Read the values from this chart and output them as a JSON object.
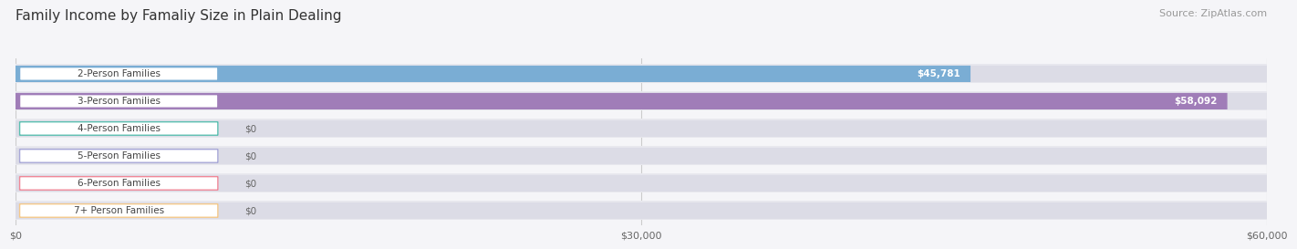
{
  "title": "Family Income by Famaliy Size in Plain Dealing",
  "source": "Source: ZipAtlas.com",
  "categories": [
    "2-Person Families",
    "3-Person Families",
    "4-Person Families",
    "5-Person Families",
    "6-Person Families",
    "7+ Person Families"
  ],
  "values": [
    45781,
    58092,
    0,
    0,
    0,
    0
  ],
  "bar_colors": [
    "#7aadd4",
    "#a07db8",
    "#5bbfb0",
    "#a8a8d8",
    "#f08898",
    "#f5c98a"
  ],
  "value_labels": [
    "$45,781",
    "$58,092",
    "$0",
    "$0",
    "$0",
    "$0"
  ],
  "xlim": [
    0,
    60000
  ],
  "xtick_values": [
    0,
    30000,
    60000
  ],
  "xtick_labels": [
    "$0",
    "$30,000",
    "$60,000"
  ],
  "title_fontsize": 11,
  "source_fontsize": 8,
  "label_fontsize": 7.5,
  "value_fontsize": 7.5,
  "background_color": "#f5f5f8",
  "bar_row_bg": "#e8e8ee",
  "bar_track_bg": "#dcdce6"
}
